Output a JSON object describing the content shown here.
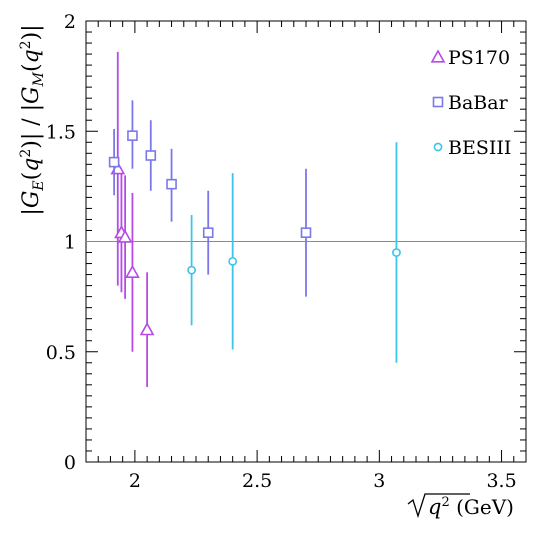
{
  "chart_data": {
    "type": "scatter",
    "xlabel": "√q² (GeV)",
    "ylabel": "|G_E(q²)| / |G_M(q²)|",
    "xlim": [
      1.8,
      3.6
    ],
    "ylim": [
      0,
      2
    ],
    "x_ticks": [
      "2",
      "2.5",
      "3",
      "3.5"
    ],
    "y_ticks": [
      "0",
      "0.5",
      "1",
      "1.5",
      "2"
    ],
    "reference_line": 1,
    "legend_position": "top-right",
    "series": [
      {
        "name": "PS170",
        "marker": "triangle",
        "color": "#b44be6",
        "points": [
          {
            "x": 1.93,
            "y": 1.33,
            "lo": 0.8,
            "hi": 1.86
          },
          {
            "x": 1.945,
            "y": 1.04,
            "lo": 0.77,
            "hi": 1.31
          },
          {
            "x": 1.96,
            "y": 1.02,
            "lo": 0.74,
            "hi": 1.3
          },
          {
            "x": 1.99,
            "y": 0.86,
            "lo": 0.5,
            "hi": 1.22
          },
          {
            "x": 2.05,
            "y": 0.6,
            "lo": 0.34,
            "hi": 0.86
          }
        ]
      },
      {
        "name": "BaBar",
        "marker": "square",
        "color": "#7b78e8",
        "points": [
          {
            "x": 1.915,
            "y": 1.36,
            "lo": 1.21,
            "hi": 1.51
          },
          {
            "x": 1.99,
            "y": 1.48,
            "lo": 1.33,
            "hi": 1.64
          },
          {
            "x": 2.065,
            "y": 1.39,
            "lo": 1.23,
            "hi": 1.55
          },
          {
            "x": 2.15,
            "y": 1.26,
            "lo": 1.09,
            "hi": 1.42
          },
          {
            "x": 2.3,
            "y": 1.04,
            "lo": 0.85,
            "hi": 1.23
          },
          {
            "x": 2.7,
            "y": 1.04,
            "lo": 0.75,
            "hi": 1.33
          }
        ]
      },
      {
        "name": "BESIII",
        "marker": "circle",
        "color": "#3cc4ea",
        "points": [
          {
            "x": 2.232,
            "y": 0.87,
            "lo": 0.62,
            "hi": 1.12
          },
          {
            "x": 2.4,
            "y": 0.91,
            "lo": 0.51,
            "hi": 1.31
          },
          {
            "x": 3.07,
            "y": 0.95,
            "lo": 0.45,
            "hi": 1.45
          }
        ]
      }
    ]
  }
}
